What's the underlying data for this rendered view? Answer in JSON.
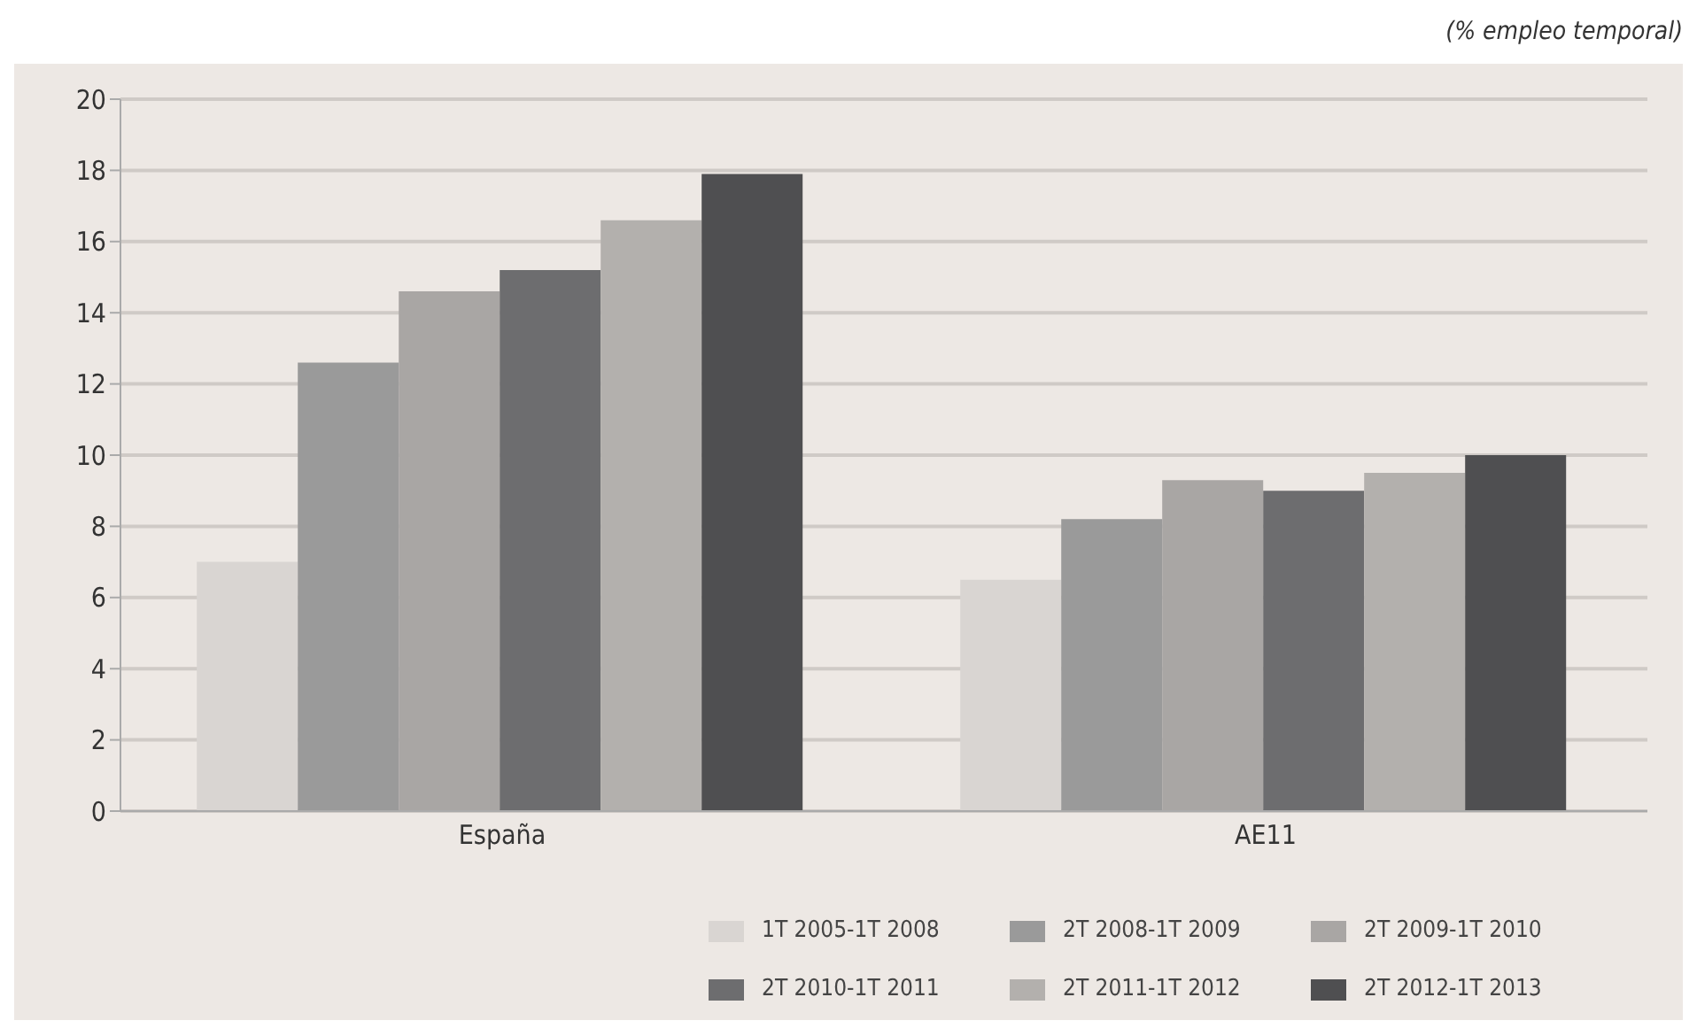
{
  "chart_data": {
    "type": "bar",
    "subtitle": "(% empleo temporal)",
    "categories": [
      "España",
      "AE11"
    ],
    "series": [
      {
        "name": "1T 2005-1T 2008",
        "color": "#d9d5d2",
        "values": [
          7.0,
          6.5
        ]
      },
      {
        "name": "2T 2008-1T 2009",
        "color": "#9a9a9a",
        "values": [
          12.6,
          8.2
        ]
      },
      {
        "name": "2T 2009-1T 2010",
        "color": "#a9a6a4",
        "values": [
          14.6,
          9.3
        ]
      },
      {
        "name": "2T 2010-1T 2011",
        "color": "#6d6d6f",
        "values": [
          15.2,
          9.0
        ]
      },
      {
        "name": "2T 2011-1T 2012",
        "color": "#b3b0ad",
        "values": [
          16.6,
          9.5
        ]
      },
      {
        "name": "2T 2012-1T 2013",
        "color": "#4f4f51",
        "values": [
          17.9,
          10.0
        ]
      }
    ],
    "ylim": [
      0,
      20
    ],
    "yticks": [
      0,
      2,
      4,
      6,
      8,
      10,
      12,
      14,
      16,
      18,
      20
    ],
    "grid": "y",
    "legend": "bottom"
  }
}
